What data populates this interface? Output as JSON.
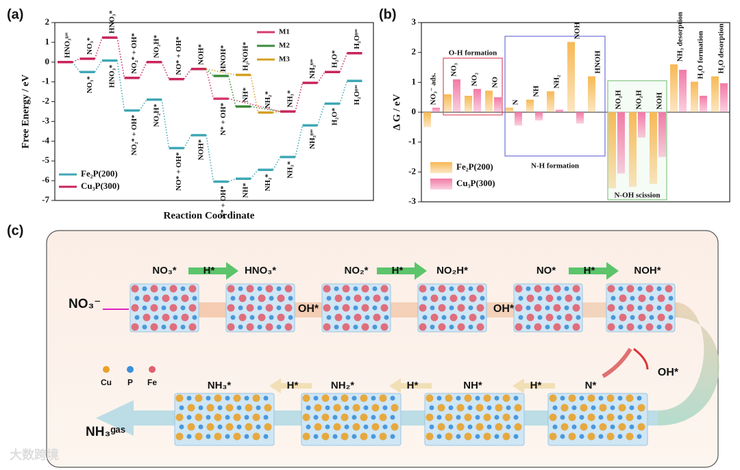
{
  "chart_data": [
    {
      "type": "energy",
      "label": "(a)",
      "ylabel": "Free Energy / eV",
      "xlabel": "Reaction Coordinate",
      "ylim": [
        -7,
        2
      ],
      "yticks": [
        -7,
        -6,
        -5,
        -4,
        -3,
        -2,
        -1,
        0,
        1,
        2
      ],
      "series": [
        {
          "name": "Fe₂P(200)",
          "color": "#3fa7b5",
          "values": [
            0,
            -0.5,
            0.08,
            -2.45,
            -1.9,
            -4.35,
            -3.7,
            -6.05,
            -5.9,
            -5.45,
            -4.8,
            -3.2,
            -2.1,
            -0.95
          ],
          "labels": [
            null,
            "NO₃*",
            "HNO₃*",
            "NO₂* + OH*",
            "NO₂H*",
            "NO* + OH*",
            "NOH*",
            "N* + OH*",
            "NH*",
            "NH₂*",
            "NH₃*",
            "NH₃ᵍᵃˢ",
            "H₂O*",
            "H₂Oᵍᵃˢ"
          ]
        },
        {
          "name": "Cu₃P(300)",
          "color": "#c8245a",
          "values": [
            0,
            0.17,
            1.24,
            -0.8,
            0,
            -0.86,
            -0.35,
            null,
            null,
            null,
            -2.5,
            -1.05,
            -0.5,
            0.45
          ],
          "labels": [
            "HNO₃ᵍᵃˢ",
            "NO₃*",
            "HNO₃*",
            "NO₂* + OH*",
            "NO₂H*",
            "NO* + OH*",
            "NOH*",
            null,
            null,
            null,
            "NH₃*",
            "NH₃ᵍᵃˢ",
            "H₂O*",
            "H₂Oᵍᵃˢ"
          ]
        },
        {
          "name": "M1",
          "color": "#d63a6e",
          "values": [
            null,
            null,
            null,
            null,
            null,
            null,
            null,
            -1.85,
            null,
            null,
            null,
            null,
            null,
            null
          ],
          "labels": [
            null,
            null,
            null,
            null,
            null,
            null,
            null,
            "N* + OH*",
            null,
            null,
            null,
            null,
            null,
            null
          ]
        },
        {
          "name": "M2",
          "color": "#3c8a3c",
          "values": [
            null,
            null,
            null,
            null,
            null,
            null,
            null,
            -0.7,
            -2.25,
            null,
            null,
            null,
            null,
            null
          ],
          "labels": [
            null,
            null,
            null,
            null,
            null,
            null,
            null,
            "HNOH*",
            "NH*",
            null,
            null,
            null,
            null,
            null
          ]
        },
        {
          "name": "M3",
          "color": "#d4a020",
          "values": [
            null,
            null,
            null,
            null,
            null,
            null,
            null,
            null,
            -0.65,
            -2.55,
            null,
            null,
            null,
            null
          ],
          "labels": [
            null,
            null,
            null,
            null,
            null,
            null,
            null,
            null,
            "H₂NOH*",
            "NH₂*",
            null,
            null,
            null,
            null
          ]
        }
      ]
    },
    {
      "type": "bar",
      "label": "(b)",
      "ylabel": "Δ G / eV",
      "ylim": [
        -3,
        3
      ],
      "yticks": [
        -3,
        -2,
        -1,
        0,
        1,
        2,
        3
      ],
      "categories": [
        "NO₃⁻ ads.",
        "NO₃",
        "NO₂",
        "NO",
        "N",
        "NH",
        "NH₂",
        "NOH",
        "HNOH",
        "NO₂H",
        "NO₂H",
        "NOH",
        "NH₃ desorption",
        "H₂O formation",
        "H₂O desorption"
      ],
      "groups": [
        "O-H formation",
        "N-H formation",
        "N-OH scission"
      ],
      "series": [
        {
          "name": "Fe₂P(200)",
          "color": "#f7b955",
          "values": [
            -0.5,
            0.6,
            0.55,
            0.72,
            0.15,
            0.42,
            0.7,
            2.35,
            1.2,
            -2.55,
            -2.5,
            -2.4,
            1.6,
            1.02,
            1.2
          ]
        },
        {
          "name": "Cu₃P(300)",
          "color": "#f27aa6",
          "values": [
            0.15,
            1.1,
            0.78,
            0.5,
            -0.45,
            -0.28,
            0.08,
            -0.38,
            null,
            -2.05,
            -0.85,
            -1.5,
            1.42,
            0.55,
            0.97
          ]
        }
      ]
    }
  ],
  "diagram": {
    "label": "(c)",
    "top_species": [
      "NO₃*",
      "HNO₃*",
      "NO₂*",
      "NO₂H*",
      "NO*",
      "NOH*"
    ],
    "top_steps": [
      "H*",
      "H*",
      "H*"
    ],
    "byproducts": [
      "OH*",
      "OH*",
      "OH*"
    ],
    "reactant": "NO₃⁻",
    "bottom_species": [
      "N*",
      "NH*",
      "NH₂*",
      "NH₃*"
    ],
    "bottom_steps": [
      "H*",
      "H*",
      "H*"
    ],
    "product": "NH₃ᵍᵃˢ",
    "legend": [
      "Cu",
      "P",
      "Fe"
    ]
  },
  "watermark": "大数跨境"
}
